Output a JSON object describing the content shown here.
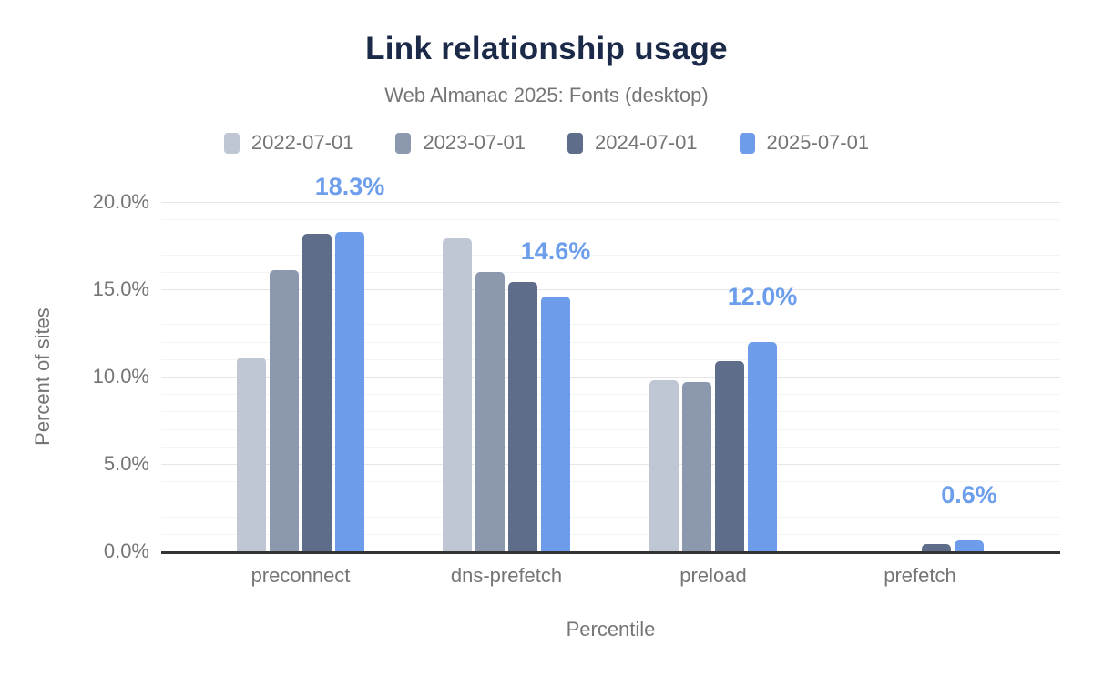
{
  "chart_data": {
    "type": "bar",
    "title": "Link relationship usage",
    "subtitle": "Web Almanac 2025: Fonts (desktop)",
    "xlabel": "Percentile",
    "ylabel": "Percent of sites",
    "categories": [
      "preconnect",
      "dns-prefetch",
      "preload",
      "prefetch"
    ],
    "series": [
      {
        "name": "2022-07-01",
        "color": "#bfc7d4",
        "values": [
          11.1,
          17.9,
          9.8,
          0.0
        ]
      },
      {
        "name": "2023-07-01",
        "color": "#8c98ae",
        "values": [
          16.1,
          16.0,
          9.7,
          0.0
        ]
      },
      {
        "name": "2024-07-01",
        "color": "#5e6d8a",
        "values": [
          18.2,
          15.4,
          10.9,
          0.4
        ]
      },
      {
        "name": "2025-07-01",
        "color": "#6d9ceb",
        "values": [
          18.3,
          14.6,
          12.0,
          0.6
        ]
      }
    ],
    "annotations": {
      "series": "2025-07-01",
      "color": "#6d9eeb",
      "labels": [
        "18.3%",
        "14.6%",
        "12.0%",
        "0.6%"
      ]
    },
    "yticks": [
      {
        "label": "0.0%",
        "value": 0
      },
      {
        "label": "5.0%",
        "value": 5
      },
      {
        "label": "10.0%",
        "value": 10
      },
      {
        "label": "15.0%",
        "value": 15
      },
      {
        "label": "20.0%",
        "value": 20
      }
    ],
    "ylim": [
      0,
      20
    ],
    "grid": "on",
    "legend_position": "top",
    "colors": {
      "title": "#1b2a49",
      "text_muted": "#757575",
      "axis_line": "#333333",
      "gridline_major": "#e6e6e6",
      "gridline_minor": "#f3f4f6"
    }
  }
}
